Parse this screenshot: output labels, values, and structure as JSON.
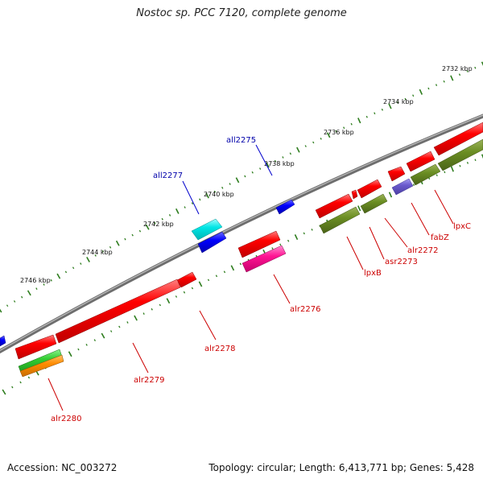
{
  "title": "Nostoc sp. PCC 7120, complete genome",
  "footer": {
    "accession": "Accession: NC_003272",
    "summary": "Topology: circular; Length: 6,413,771 bp; Genes: 5,428"
  },
  "colors": {
    "backbone": "#808080",
    "tick": "#2e7d1e",
    "forward_gene": "#ff0000",
    "reverse_gene": "#0000ff",
    "forward_label": "#cc0000",
    "reverse_label": "#0000aa"
  },
  "scale_labels": [
    "2732 kbp",
    "2734 kbp",
    "2736 kbp",
    "2738 kbp",
    "2740 kbp",
    "2742 kbp",
    "2744 kbp",
    "2746 kbp"
  ],
  "genes": [
    {
      "id": "all2275",
      "label": "all2275",
      "strand": "reverse"
    },
    {
      "id": "all2277",
      "label": "all2277",
      "strand": "reverse"
    },
    {
      "id": "lpxC",
      "label": "lpxC",
      "strand": "forward"
    },
    {
      "id": "fabZ",
      "label": "fabZ",
      "strand": "forward"
    },
    {
      "id": "alr2272",
      "label": "alr2272",
      "strand": "forward"
    },
    {
      "id": "asr2273",
      "label": "asr2273",
      "strand": "forward"
    },
    {
      "id": "lpxB",
      "label": "lpxB",
      "strand": "forward"
    },
    {
      "id": "alr2276",
      "label": "alr2276",
      "strand": "forward"
    },
    {
      "id": "alr2278",
      "label": "alr2278",
      "strand": "forward"
    },
    {
      "id": "alr2279",
      "label": "alr2279",
      "strand": "forward"
    },
    {
      "id": "alr2280",
      "label": "alr2280",
      "strand": "forward"
    }
  ]
}
